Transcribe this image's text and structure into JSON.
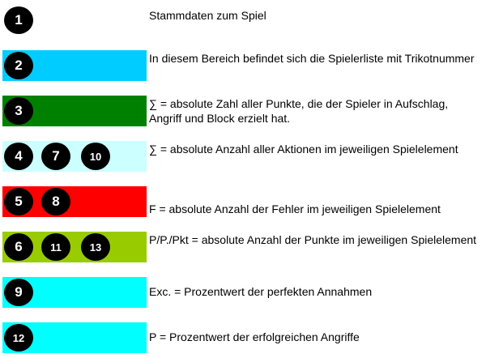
{
  "rows": [
    {
      "color": "#ffffff",
      "badges": [
        "1"
      ],
      "text": "Stammdaten zum Spiel"
    },
    {
      "color": "#00ccff",
      "badges": [
        "2"
      ],
      "text": "In diesem Bereich befindet sich die Spielerliste mit Trikotnummer"
    },
    {
      "color": "#008000",
      "badges": [
        "3"
      ],
      "text": "∑ = absolute Zahl aller Punkte, die der Spieler in Aufschlag, Angriff und Block erzielt hat."
    },
    {
      "color": "#ccffff",
      "badges": [
        "4",
        "7",
        "10"
      ],
      "text": "∑ = absolute Anzahl aller Aktionen im jeweiligen Spielelement"
    },
    {
      "color": "#ff0000",
      "badges": [
        "5",
        "8"
      ],
      "text": "F = absolute Anzahl der Fehler im jeweiligen Spielelement"
    },
    {
      "color": "#99cc00",
      "badges": [
        "6",
        "11",
        "13"
      ],
      "text": "P/P./Pkt = absolute Anzahl der Punkte im jeweiligen Spielelement"
    },
    {
      "color": "#00ffff",
      "badges": [
        "9"
      ],
      "text": "Exc. = Prozentwert der perfekten Annahmen"
    },
    {
      "color": "#00ffff",
      "badges": [
        "12"
      ],
      "text": "P = Prozentwert der erfolgreichen Angriffe"
    }
  ]
}
